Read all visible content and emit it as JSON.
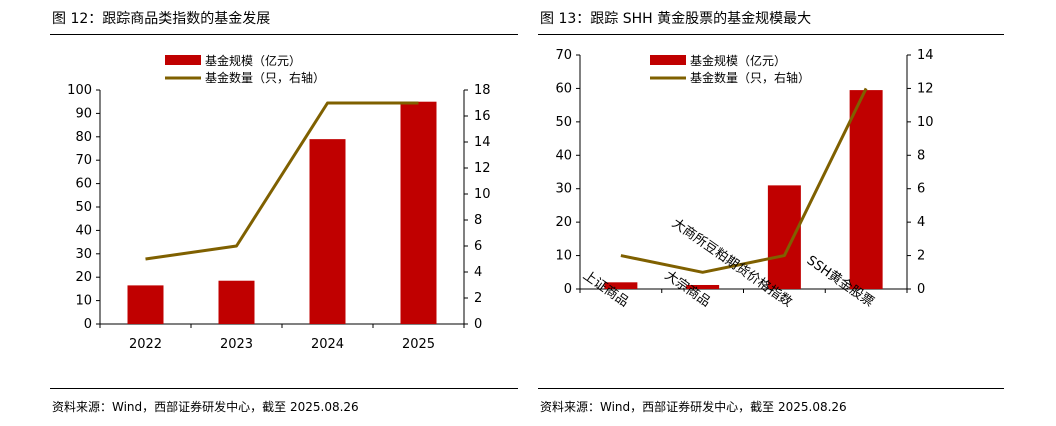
{
  "charts": [
    {
      "title": "图 12：跟踪商品类指数的基金发展",
      "source": "资料来源：Wind，西部证券研发中心，截至 2025.08.26",
      "chart_data": {
        "type": "bar+line",
        "categories": [
          "2022",
          "2023",
          "2024",
          "2025"
        ],
        "series": [
          {
            "name": "基金规模（亿元）",
            "type": "bar",
            "axis": "left",
            "color": "#c00000",
            "values": [
              16.5,
              18.5,
              79,
              95
            ]
          },
          {
            "name": "基金数量（只，右轴）",
            "type": "line",
            "axis": "right",
            "color": "#7f6000",
            "values": [
              5,
              6,
              17,
              17
            ]
          }
        ],
        "y_left": {
          "ylim": [
            0,
            100
          ],
          "ticks": [
            0,
            10,
            20,
            30,
            40,
            50,
            60,
            70,
            80,
            90,
            100
          ]
        },
        "y_right": {
          "ylim": [
            0,
            18
          ],
          "ticks": [
            0,
            2,
            4,
            6,
            8,
            10,
            12,
            14,
            16,
            18
          ]
        },
        "legend": "top-center"
      }
    },
    {
      "title": "图 13：跟踪 SHH 黄金股票的基金规模最大",
      "source": "资料来源：Wind，西部证券研发中心，截至 2025.08.26",
      "chart_data": {
        "type": "bar+line",
        "categories": [
          "上证商品",
          "大宗商品",
          "大商所豆粕期货价格指数",
          "SSH黄金股票"
        ],
        "series": [
          {
            "name": "基金规模（亿元）",
            "type": "bar",
            "axis": "left",
            "color": "#c00000",
            "values": [
              2,
              1.2,
              31,
              59.5
            ]
          },
          {
            "name": "基金数量（只，右轴）",
            "type": "line",
            "axis": "right",
            "color": "#7f6000",
            "values": [
              2,
              1,
              2,
              12
            ]
          }
        ],
        "y_left": {
          "ylim": [
            0,
            70
          ],
          "ticks": [
            0,
            10,
            20,
            30,
            40,
            50,
            60,
            70
          ]
        },
        "y_right": {
          "ylim": [
            0,
            14
          ],
          "ticks": [
            0,
            2,
            4,
            6,
            8,
            10,
            12,
            14
          ]
        },
        "legend": "top-center"
      }
    }
  ]
}
